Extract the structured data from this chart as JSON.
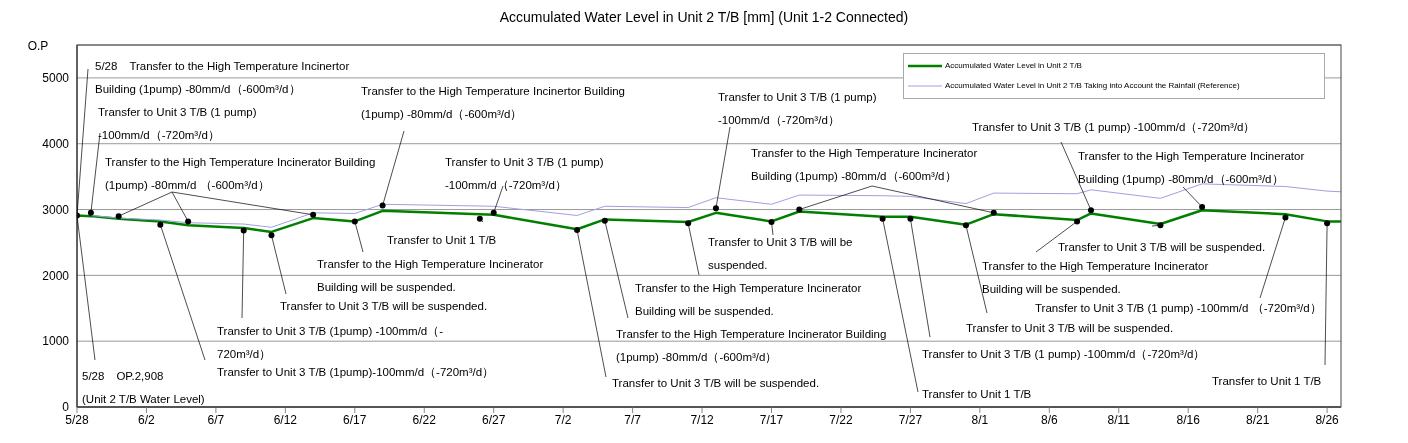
{
  "chart_data": {
    "type": "line",
    "title": "Accumulated Water Level in Unit 2 T/B [mm] (Unit 1-2 Connected)",
    "ylabel": "O.P",
    "xlim": [
      "--05-28",
      "--08-27"
    ],
    "xticks": [
      {
        "value": "--05-28",
        "label": "5/28"
      },
      {
        "value": "--06-02",
        "label": "6/2"
      },
      {
        "value": "--06-07",
        "label": "6/7"
      },
      {
        "value": "--06-12",
        "label": "6/12"
      },
      {
        "value": "--06-17",
        "label": "6/17"
      },
      {
        "value": "--06-22",
        "label": "6/22"
      },
      {
        "value": "--06-27",
        "label": "6/27"
      },
      {
        "value": "--07-02",
        "label": "7/2"
      },
      {
        "value": "--07-07",
        "label": "7/7"
      },
      {
        "value": "--07-12",
        "label": "7/12"
      },
      {
        "value": "--07-17",
        "label": "7/17"
      },
      {
        "value": "--07-22",
        "label": "7/22"
      },
      {
        "value": "--07-27",
        "label": "7/27"
      },
      {
        "value": "--08-01",
        "label": "8/1"
      },
      {
        "value": "--08-06",
        "label": "8/6"
      },
      {
        "value": "--08-11",
        "label": "8/11"
      },
      {
        "value": "--08-16",
        "label": "8/16"
      },
      {
        "value": "--08-21",
        "label": "8/21"
      },
      {
        "value": "--08-26",
        "label": "8/26"
      }
    ],
    "ylim": [
      0,
      5500
    ],
    "yticks": [
      0,
      1000,
      2000,
      3000,
      4000,
      5000
    ],
    "grid": "y",
    "legend": "top right",
    "marker": "none",
    "line_style": "solid",
    "series": [
      {
        "name": "Accumulated Water Level in Unit 2 T/B",
        "color": "#008000",
        "x": [
          "--05-28",
          "--05-29",
          "--05-31",
          "--06-03",
          "--06-05",
          "--06-09",
          "--06-11",
          "--06-14",
          "--06-17",
          "--06-19",
          "--06-27",
          "--07-03",
          "--07-05",
          "--07-11",
          "--07-13",
          "--07-17",
          "--07-19",
          "--07-25",
          "--07-27",
          "--07-31",
          "--08-02",
          "--08-08",
          "--08-09",
          "--08-14",
          "--08-17",
          "--08-23",
          "--08-26",
          "--08-27"
        ],
        "values": [
          2908,
          2900,
          2860,
          2820,
          2760,
          2720,
          2660,
          2870,
          2820,
          2980,
          2920,
          2700,
          2850,
          2810,
          2950,
          2820,
          2970,
          2890,
          2890,
          2770,
          2930,
          2840,
          2940,
          2780,
          2990,
          2930,
          2820,
          2820
        ]
      },
      {
        "name": "Accumulated Water Level in Unit 2 T/B Taking into Account the Rainfall (Reference)",
        "color": "#a0a0e0",
        "x": [
          "--05-29",
          "--05-31",
          "--06-03",
          "--06-05",
          "--06-09",
          "--06-11",
          "--06-14",
          "--06-17",
          "--06-19",
          "--06-27",
          "--07-03",
          "--07-05",
          "--07-11",
          "--07-13",
          "--07-17",
          "--07-19",
          "--07-25",
          "--07-27",
          "--07-31",
          "--08-02",
          "--08-08",
          "--08-09",
          "--08-14",
          "--08-17",
          "--08-23",
          "--08-26",
          "--08-27"
        ],
        "values": [
          2910,
          2870,
          2840,
          2800,
          2780,
          2730,
          2950,
          2940,
          3080,
          3050,
          2910,
          3050,
          3030,
          3180,
          3080,
          3220,
          3210,
          3200,
          3090,
          3250,
          3240,
          3300,
          3170,
          3390,
          3350,
          3280,
          3270
        ]
      },
      {
        "type": "scatter",
        "marker": "circle",
        "color": "#000000",
        "x": [
          "--05-28",
          "--05-29",
          "--05-31",
          "--06-03",
          "--06-05",
          "--06-09",
          "--06-11",
          "--06-14",
          "--06-17",
          "--06-19",
          "--06-26",
          "--06-27",
          "--07-03",
          "--07-05",
          "--07-11",
          "--07-13",
          "--07-17",
          "--07-19",
          "--07-25",
          "--07-27",
          "--07-31",
          "--08-02",
          "--08-08",
          "--08-09",
          "--08-14",
          "--08-17",
          "--08-23",
          "--08-26"
        ],
        "values": [
          2908,
          2950,
          2900,
          2770,
          2820,
          2680,
          2610,
          2920,
          2820,
          3060,
          2860,
          2950,
          2690,
          2830,
          2790,
          3020,
          2810,
          3000,
          2860,
          2860,
          2760,
          2950,
          2820,
          2990,
          2760,
          3040,
          2880,
          2790
        ]
      }
    ],
    "annotations": [
      {
        "text": "5/28　Transfer to the High Temperature Incinertor\nBuilding (1pump)  -80mm/d（-600m³/d）",
        "x": "--05-28",
        "y": 2908
      },
      {
        "text": "5/28　OP.2,908\n(Unit 2 T/B Water Level)",
        "x": "--05-28",
        "y": 2908
      },
      {
        "text": "Transfer to the High Temperature Incinertor Building\n(1pump)  -80mm/d（-600m³/d）",
        "x": "--06-19",
        "y": 3060
      },
      {
        "text": "Transfer to Unit 3 T/B (1 pump)\n-100mm/d（-720m³/d）",
        "x": "--06-27",
        "y": 2950
      },
      {
        "text": "Transfer to Unit 3 T/B (1 pump)\n-100mm/d（-720m³/d）",
        "x": "--05-29",
        "y": 2950
      },
      {
        "text": "Transfer to Unit 3 T/B (1 pump) -100mm/d（-720m³/d）",
        "x": "--08-09",
        "y": 2990
      },
      {
        "text": "Transfer to Unit 3 T/B (1 pump)\n-100mm/d（-720m³/d）",
        "x": "--07-13",
        "y": 3020
      },
      {
        "text": "Transfer to Unit 3 T/B (1 pump) -100mm/d （-720m³/d）",
        "x": "--08-23",
        "y": 2880
      },
      {
        "text": "Transfer to Unit 3 T/B (1pump) -100mm/d（-\n720m³/d）",
        "x": "--06-09",
        "y": 2680
      },
      {
        "text": "Transfer to Unit 3 T/B (1 pump) -100mm/d（-720m³/d）",
        "x": "--07-27",
        "y": 2860
      },
      {
        "text": "Transfer to Unit 3 T/B (1pump)-100mm/d（-720m³/d）",
        "x": "--06-03",
        "y": 2770
      },
      {
        "text": "Transfer to the High Temperature Incinerator\nBuilding (1pump) -80mm/d（-600m³/d）",
        "x": "--08-17",
        "y": 3040
      },
      {
        "text": "Transfer to the High Temperature Incinerator Building\n(1pump) -80mm/d （-600m³/d）",
        "x": "--05-31",
        "y": 2900
      },
      {
        "text": "Transfer to the High Temperature Incinerator\nBuilding (1pump) -80mm/d（-600m³/d）",
        "x": "--07-19",
        "y": 3000
      },
      {
        "text": "Transfer to the High Temperature Incinerator Building\n(1pump)  -80mm/d（-600m³/d）",
        "x": "--07-05",
        "y": 2830
      },
      {
        "text": "Transfer to Unit 3 T/B will be\nsuspended.",
        "x": "--07-17",
        "y": 2810
      },
      {
        "text": "Transfer to Unit 3 T/B will be suspended.",
        "x": "--08-14",
        "y": 2760
      },
      {
        "text": "Transfer to Unit 3 T/B will be suspended.",
        "x": "--06-11",
        "y": 2610
      },
      {
        "text": "Transfer to Unit 3 T/B will be suspended.",
        "x": "--07-31",
        "y": 2760
      },
      {
        "text": "Transfer to Unit 3 T/B will be suspended.",
        "x": "--07-03",
        "y": 2690
      },
      {
        "text": "Transfer to the High Temperature Incinerator\nBuilding will be suspended.",
        "x": "--06-17",
        "y": 2820
      },
      {
        "text": "Transfer to the High Temperature Incinerator\nBuilding will be suspended.",
        "x": "--08-08",
        "y": 2820
      },
      {
        "text": "Transfer to the High Temperature Incinerator\nBuilding will be suspended.",
        "x": "--07-11",
        "y": 2790
      },
      {
        "text": "Transfer to Unit 1 T/B",
        "x": "--06-26",
        "y": 2860
      },
      {
        "text": "Transfer to Unit 1 T/B",
        "x": "--08-26",
        "y": 2790
      },
      {
        "text": "Transfer to Unit 1 T/B",
        "x": "--07-25",
        "y": 2860
      }
    ]
  }
}
